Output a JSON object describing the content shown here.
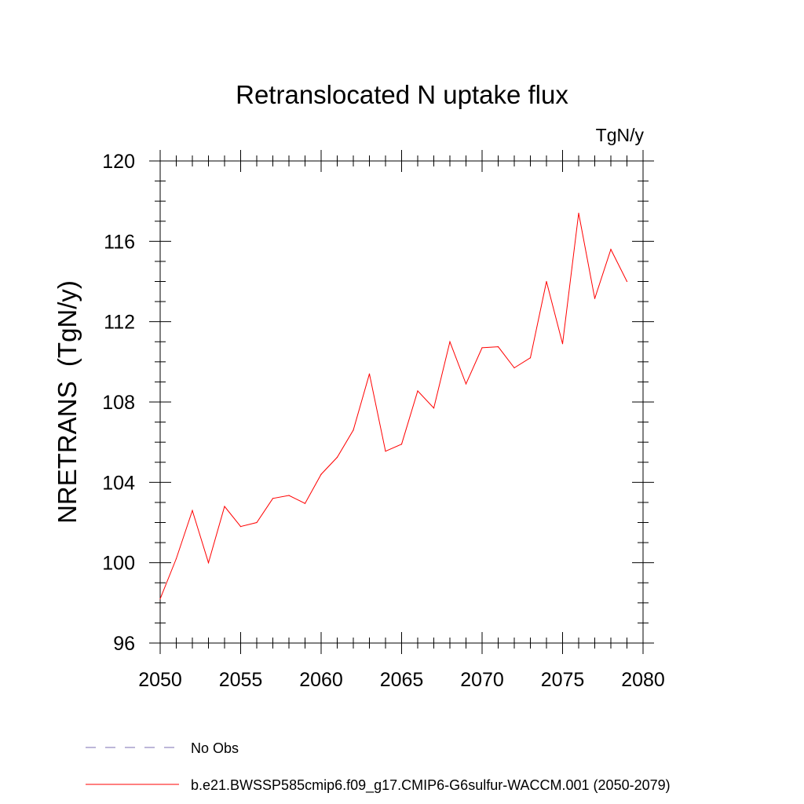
{
  "chart_data": {
    "type": "line",
    "title": "Retranslocated N uptake flux",
    "units": "TgN/y",
    "xlabel": "",
    "ylabel": "NRETRANS  (TgN/y)",
    "xlim": [
      2050,
      2080
    ],
    "ylim": [
      96,
      120
    ],
    "x_ticks": [
      "2050",
      "2055",
      "2060",
      "2065",
      "2070",
      "2075",
      "2080"
    ],
    "y_ticks": [
      "96",
      "100",
      "104",
      "108",
      "112",
      "116",
      "120"
    ],
    "grid": false,
    "legend_position": "bottom",
    "series": [
      {
        "name": "b.e21.BWSSP585cmip6.f09_g17.CMIP6-G6sulfur-WACCM.001 (2050-2079)",
        "color": "#ff0000",
        "style": "solid",
        "x": [
          2050,
          2051,
          2052,
          2053,
          2054,
          2055,
          2056,
          2057,
          2058,
          2059,
          2060,
          2061,
          2062,
          2063,
          2064,
          2065,
          2066,
          2067,
          2068,
          2069,
          2070,
          2071,
          2072,
          2073,
          2074,
          2075,
          2076,
          2077,
          2078,
          2079
        ],
        "values": [
          98.2,
          100.2,
          102.6,
          100.0,
          102.8,
          101.8,
          102.0,
          103.2,
          103.35,
          102.95,
          104.4,
          105.25,
          106.6,
          109.4,
          105.55,
          105.9,
          108.55,
          107.7,
          111.0,
          108.9,
          110.7,
          110.75,
          109.7,
          110.2,
          114.0,
          110.9,
          117.4,
          113.15,
          115.6,
          114.0
        ]
      }
    ],
    "legend": [
      {
        "label": "No Obs",
        "color": "#7b6fb3",
        "style": "dashed"
      },
      {
        "label": "b.e21.BWSSP585cmip6.f09_g17.CMIP6-G6sulfur-WACCM.001 (2050-2079)",
        "color": "#ff0000",
        "style": "solid"
      }
    ]
  }
}
